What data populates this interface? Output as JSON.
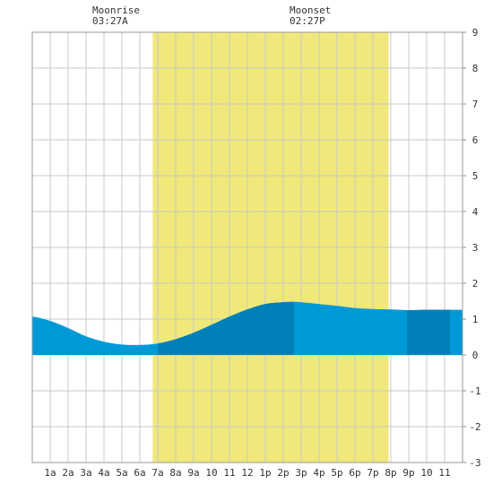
{
  "chart_data": {
    "type": "area",
    "title": "",
    "xlabel": "",
    "ylabel": "",
    "x_tick_labels": [
      "1a",
      "2a",
      "3a",
      "4a",
      "5a",
      "6a",
      "7a",
      "8a",
      "9a",
      "10",
      "11",
      "12",
      "1p",
      "2p",
      "3p",
      "4p",
      "5p",
      "6p",
      "7p",
      "8p",
      "9p",
      "10",
      "11"
    ],
    "xlim": [
      0,
      24
    ],
    "ylim": [
      -3,
      9
    ],
    "y_ticks": [
      -3,
      -2,
      -1,
      0,
      1,
      2,
      3,
      4,
      5,
      6,
      7,
      8,
      9
    ],
    "grid": true,
    "daylight": {
      "start": 6.72,
      "end": 19.88,
      "color": "#f0e87a"
    },
    "moonrise": {
      "label": "Moonrise",
      "time": "03:27A",
      "x": 3.45
    },
    "moonset": {
      "label": "Moonset",
      "time": "02:27P",
      "x": 14.45
    },
    "series": [
      {
        "x": [
          0,
          1,
          2,
          3,
          4,
          5,
          6,
          7,
          8,
          9,
          10,
          11,
          12,
          13,
          14,
          14.6,
          15,
          16,
          17,
          18,
          19,
          20,
          21,
          22,
          23,
          24
        ],
        "values": [
          1.07,
          0.95,
          0.75,
          0.52,
          0.37,
          0.29,
          0.28,
          0.32,
          0.44,
          0.62,
          0.84,
          1.07,
          1.27,
          1.42,
          1.47,
          1.48,
          1.47,
          1.42,
          1.37,
          1.31,
          1.28,
          1.27,
          1.25,
          1.26,
          1.26,
          1.26
        ]
      }
    ],
    "band_colors": {
      "light": "#0099d8",
      "dark": "#0080b8"
    },
    "dark_bands": [
      [
        7,
        14.6
      ],
      [
        20.9,
        23.3
      ]
    ]
  }
}
